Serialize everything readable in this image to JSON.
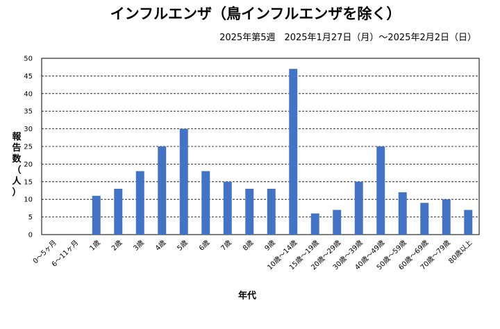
{
  "chart_data": {
    "type": "bar",
    "title": "インフルエンザ（鳥インフルエンザを除く）",
    "subtitle": "2025年第5週　2025年1月27日（月）～2025年2月2日（日）",
    "xlabel": "年代",
    "ylabel_chars": [
      "報",
      "告",
      "数",
      "（",
      "人",
      "）"
    ],
    "categories": [
      "0～5ヶ月",
      "6～11ヶ月",
      "1歳",
      "2歳",
      "3歳",
      "4歳",
      "5歳",
      "6歳",
      "7歳",
      "8歳",
      "9歳",
      "10歳～14歳",
      "15歳～19歳",
      "20歳～29歳",
      "30歳～39歳",
      "40歳～49歳",
      "50歳～59歳",
      "60歳～69歳",
      "70歳～79歳",
      "80歳以上"
    ],
    "values": [
      0,
      0,
      11,
      13,
      18,
      25,
      30,
      18,
      15,
      13,
      13,
      47,
      6,
      7,
      15,
      25,
      12,
      9,
      10,
      7
    ],
    "ylim": [
      0,
      50
    ],
    "yticks": [
      0,
      5,
      10,
      15,
      20,
      25,
      30,
      35,
      40,
      45,
      50
    ],
    "grid": true,
    "bar_color": "#4472C4"
  }
}
